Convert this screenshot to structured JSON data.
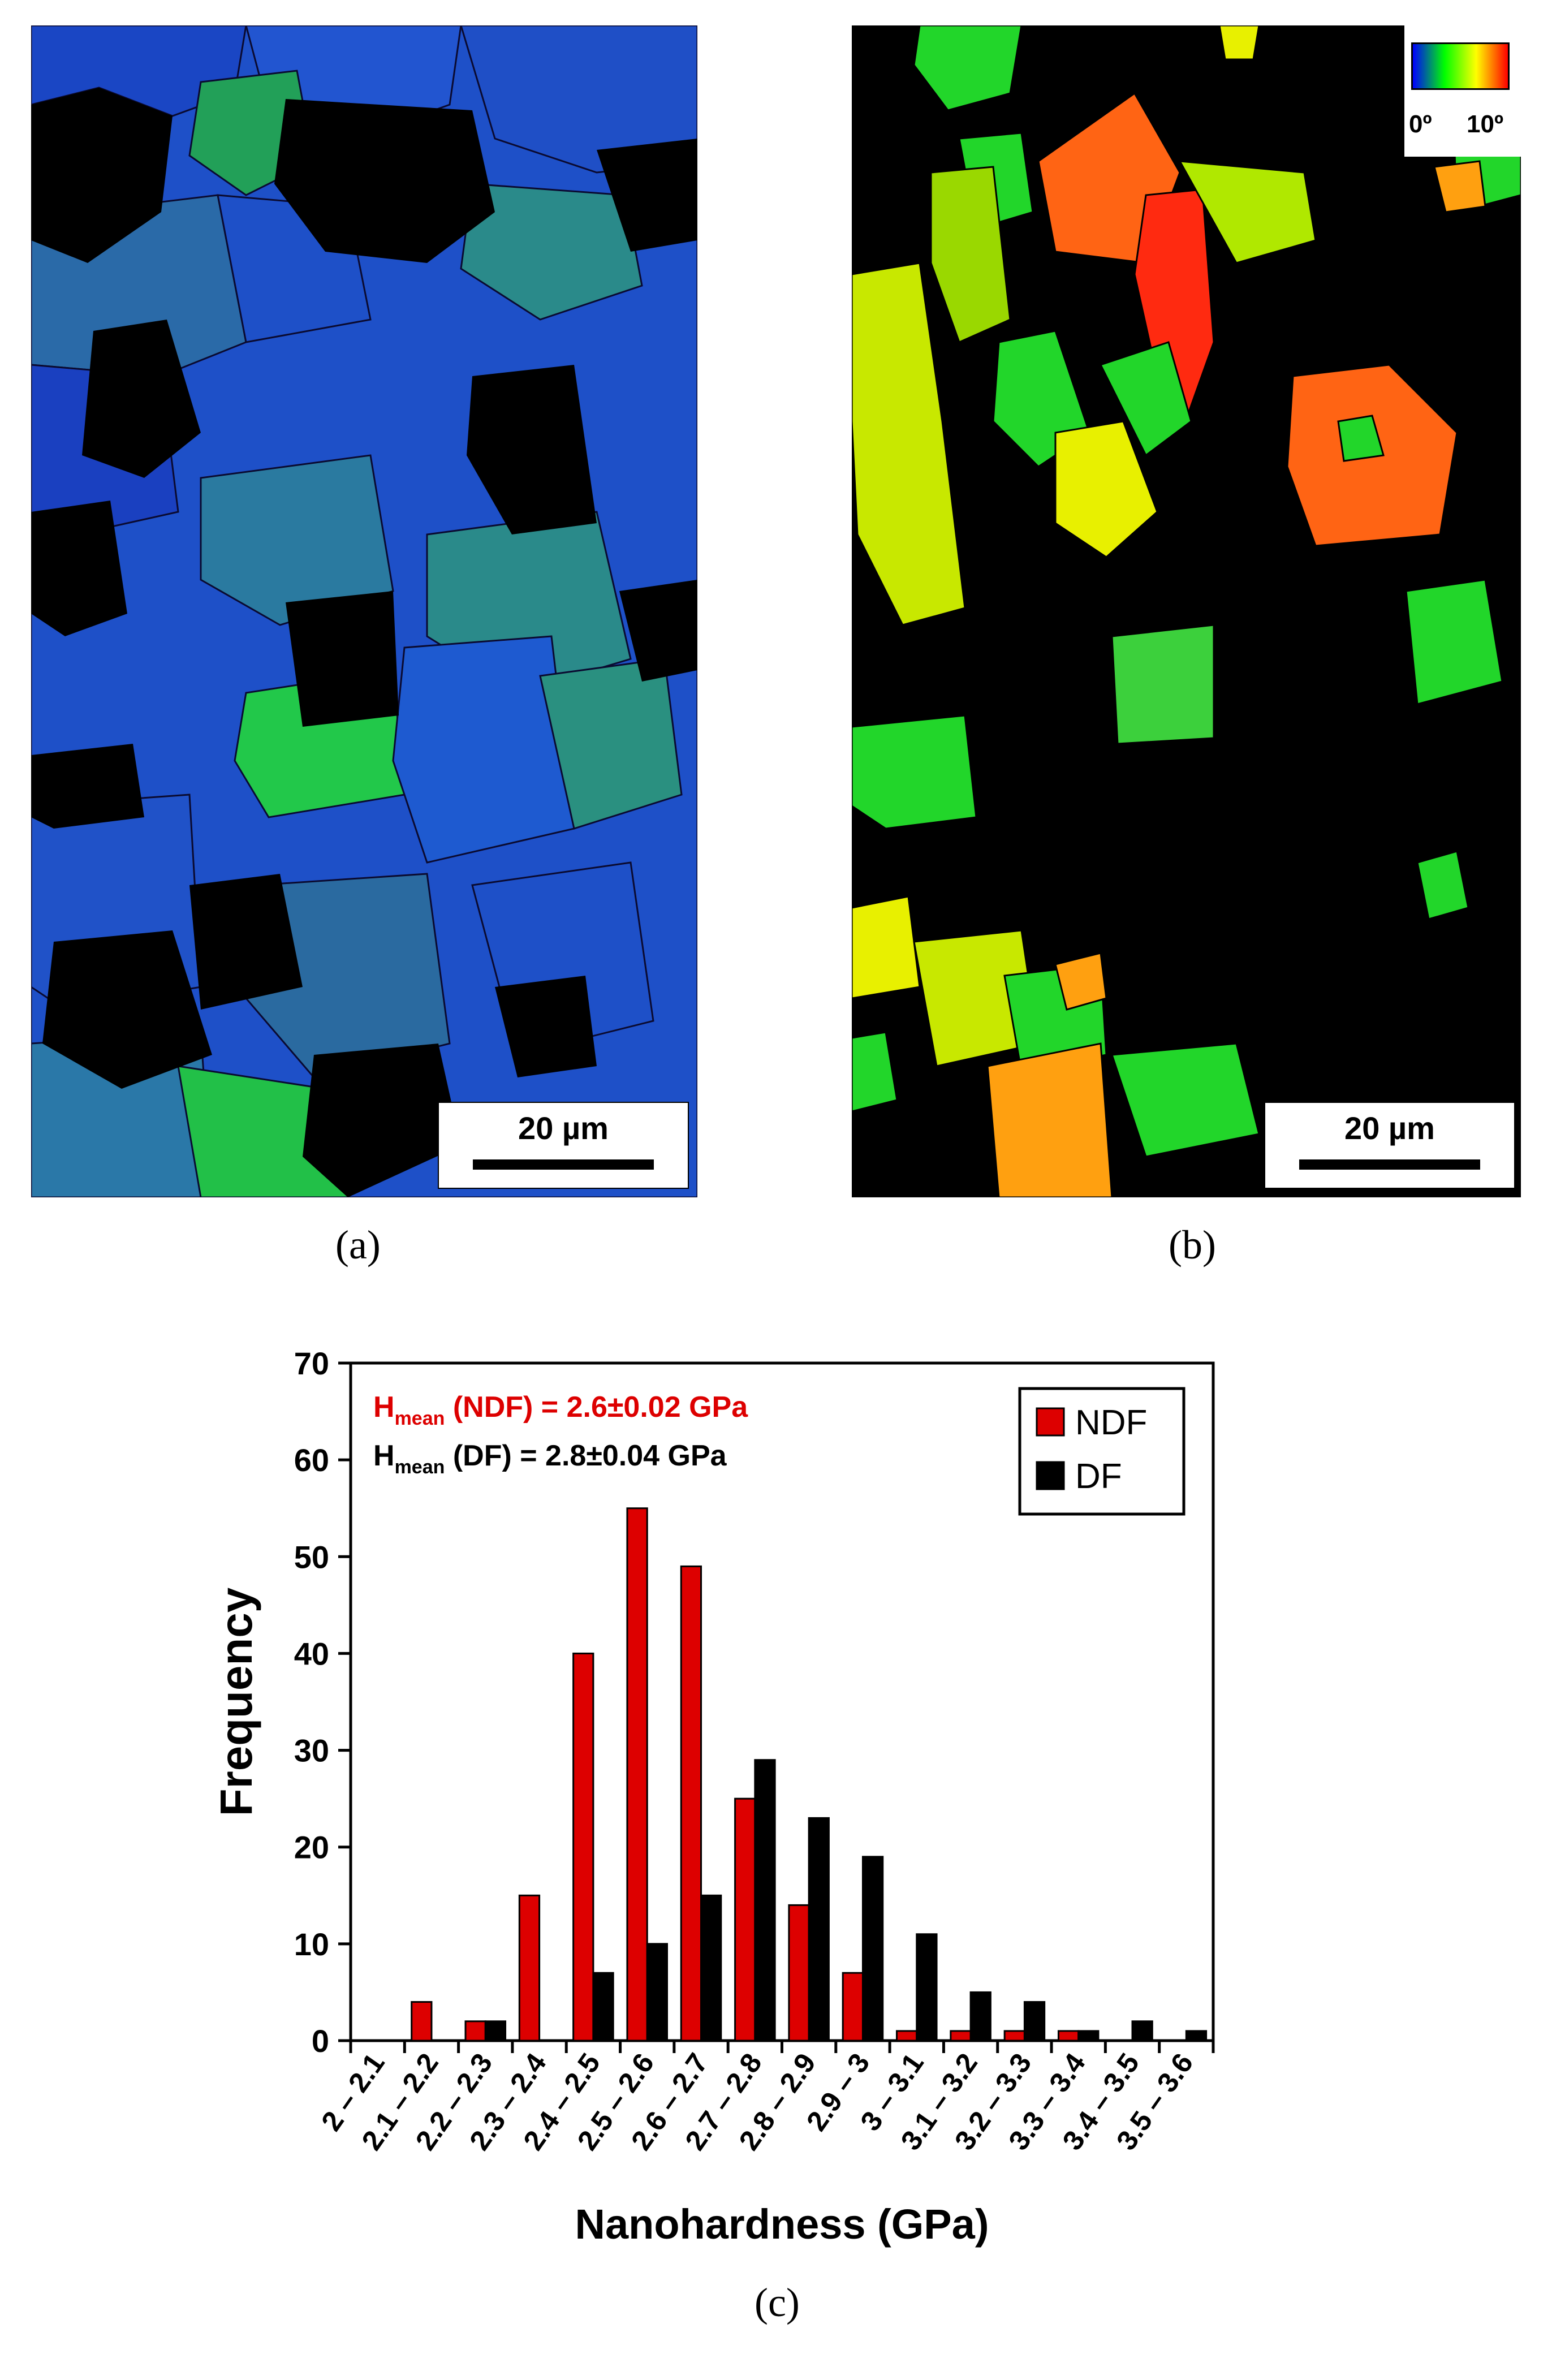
{
  "panel_a": {
    "label": "(a)",
    "scalebar_label": "20 µm",
    "colors": {
      "background": "#000000",
      "grain_primary": "#1e50c8",
      "grain_secondary": "#2a8a8a",
      "grain_tertiary": "#22c84a"
    }
  },
  "panel_b": {
    "label": "(b)",
    "scalebar_label": "20 µm",
    "legend": {
      "min_label": "0º",
      "max_label": "10º",
      "gradient": [
        "#0000ff",
        "#00ff00",
        "#ffff00",
        "#ff0000"
      ]
    },
    "colors": {
      "background": "#000000",
      "grain_green": "#22d62a",
      "grain_yellow": "#e8f000",
      "grain_orange": "#ff7a10",
      "grain_red": "#ff2a10"
    }
  },
  "panel_c": {
    "label": "(c)"
  },
  "chart_data": {
    "type": "bar",
    "title": "",
    "xlabel": "Nanohardness (GPa)",
    "ylabel": "Frequency",
    "ylim": [
      0,
      70
    ],
    "yticks": [
      0,
      10,
      20,
      30,
      40,
      50,
      60,
      70
    ],
    "categories": [
      "2 – 2.1",
      "2.1 – 2.2",
      "2.2 – 2.3",
      "2.3 – 2.4",
      "2.4 – 2.5",
      "2.5 – 2.6",
      "2.6 – 2.7",
      "2.7 – 2.8",
      "2.8 – 2.9",
      "2.9 – 3",
      "3 – 3.1",
      "3.1 – 3.2",
      "3.2 – 3.3",
      "3.3 – 3.4",
      "3.4 – 3.5",
      "3.5 – 3.6"
    ],
    "series": [
      {
        "name": "NDF",
        "color": "#dd0000",
        "values": [
          0,
          4,
          2,
          15,
          40,
          55,
          49,
          25,
          14,
          7,
          1,
          1,
          1,
          1,
          0,
          0
        ]
      },
      {
        "name": "DF",
        "color": "#000000",
        "values": [
          0,
          0,
          2,
          0,
          7,
          10,
          15,
          29,
          23,
          19,
          11,
          5,
          4,
          1,
          2,
          1
        ]
      }
    ],
    "annotations": [
      {
        "main": "H",
        "sub": "mean",
        "rest": " (NDF) = 2.6±0.02 GPa",
        "color": "#dd0000"
      },
      {
        "main": "H",
        "sub": "mean",
        "rest": " (DF) = 2.8±0.04 GPa",
        "color": "#000000"
      }
    ],
    "grid": false,
    "legend_position": "top-right"
  }
}
